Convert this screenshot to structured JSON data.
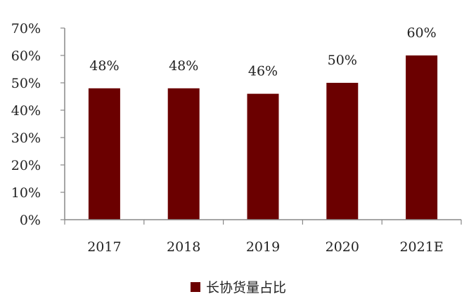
{
  "chart_data": {
    "type": "bar",
    "categories": [
      "2017",
      "2018",
      "2019",
      "2020",
      "2021E"
    ],
    "series": [
      {
        "name": "长协货量占比",
        "values": [
          48,
          48,
          46,
          50,
          60
        ],
        "labels": [
          "48%",
          "48%",
          "46%",
          "50%",
          "60%"
        ],
        "color": "#6b0000"
      }
    ],
    "ylim": [
      0,
      70
    ],
    "yticks": [
      0,
      10,
      20,
      30,
      40,
      50,
      60,
      70
    ],
    "ytick_labels": [
      "0%",
      "10%",
      "20%",
      "30%",
      "40%",
      "50%",
      "60%",
      "70%"
    ],
    "grid": false,
    "legend_position": "bottom",
    "axis_color": "#888888"
  }
}
